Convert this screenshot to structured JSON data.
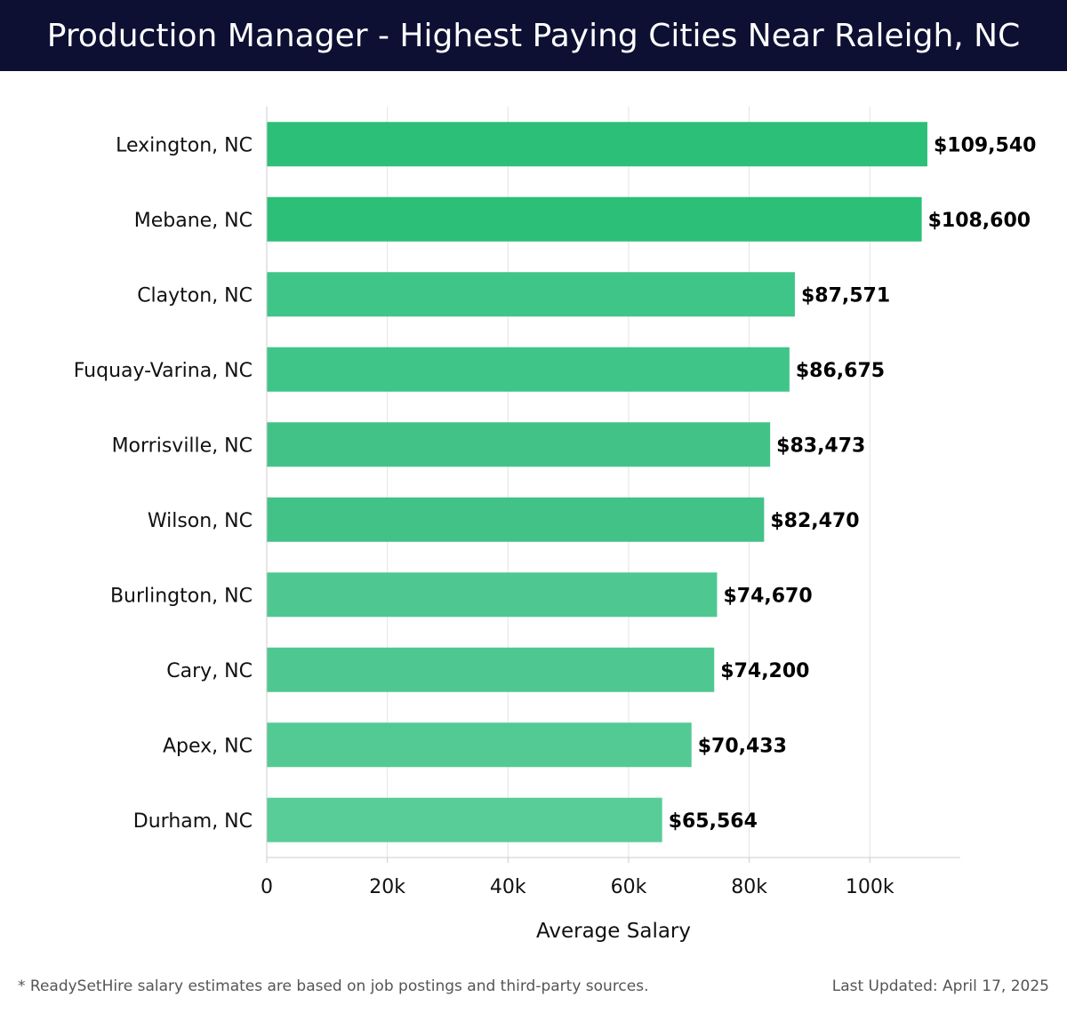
{
  "header": {
    "title": "Production Manager - Highest Paying Cities Near Raleigh, NC"
  },
  "chart_data": {
    "type": "bar",
    "orientation": "horizontal",
    "title": "Production Manager - Highest Paying Cities Near Raleigh, NC",
    "xlabel": "Average Salary",
    "ylabel": "",
    "xlim": [
      0,
      115000
    ],
    "x_ticks": [
      0,
      20000,
      40000,
      60000,
      80000,
      100000
    ],
    "x_tick_labels": [
      "0",
      "20k",
      "40k",
      "60k",
      "80k",
      "100k"
    ],
    "grid": true,
    "categories": [
      "Lexington, NC",
      "Mebane, NC",
      "Clayton, NC",
      "Fuquay-Varina, NC",
      "Morrisville, NC",
      "Wilson, NC",
      "Burlington, NC",
      "Cary, NC",
      "Apex, NC",
      "Durham, NC"
    ],
    "values": [
      109540,
      108600,
      87571,
      86675,
      83473,
      82470,
      74670,
      74200,
      70433,
      65564
    ],
    "value_labels": [
      "$109,540",
      "$108,600",
      "$87,571",
      "$86,675",
      "$83,473",
      "$82,470",
      "$74,670",
      "$74,200",
      "$70,433",
      "$65,564"
    ],
    "bar_colors": [
      "#2bbf78",
      "#2bbf78",
      "#40c588",
      "#40c588",
      "#43c287",
      "#43c287",
      "#4ec890",
      "#4ec890",
      "#53ca93",
      "#59cd97"
    ]
  },
  "footer": {
    "note": "* ReadySetHire salary estimates are based on job postings and third-party sources.",
    "updated": "Last Updated: April 17, 2025"
  },
  "colors": {
    "header_bg": "#0d0f33",
    "grid": "#e3e3e3",
    "axis": "#cccccc",
    "label": "#111111"
  }
}
